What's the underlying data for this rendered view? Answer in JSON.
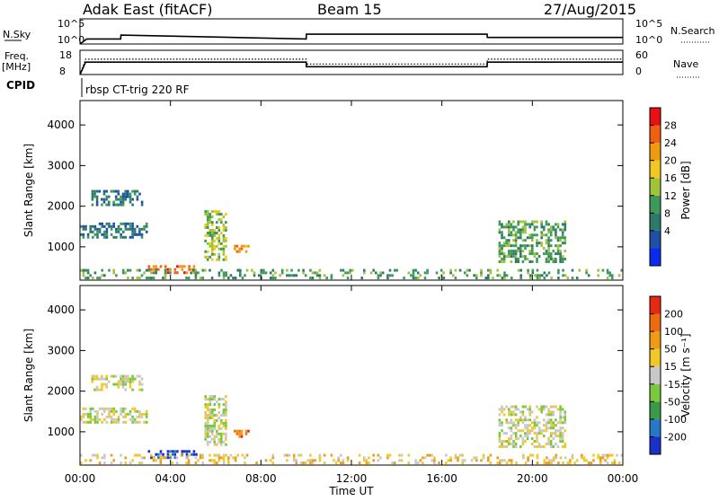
{
  "header": {
    "title": "Adak East (fitACF)",
    "beam": "Beam 15",
    "date": "27/Aug/2015"
  },
  "top_panels": {
    "nsky_label": "N.Sky",
    "nsearch_label": "N.Search",
    "freq_label": "Freq.",
    "freq_unit": "[MHz]",
    "nave_label": "Nave",
    "cpid_label": "CPID",
    "cpid_text": "rbsp CT-trig 220 RF",
    "nsky_ticks": [
      "10^5",
      "10^0"
    ],
    "nsearch_ticks": [
      "10^5",
      "10^0"
    ],
    "freq_ticks": [
      "18",
      "8"
    ],
    "nave_ticks": [
      "60",
      "0"
    ]
  },
  "colorbars": {
    "power": {
      "label": "Power [dB]",
      "ticks": [
        "28",
        "24",
        "20",
        "16",
        "12",
        "8",
        "4"
      ],
      "colors": [
        "#0a2af0",
        "#1f4fa6",
        "#2e7a6a",
        "#3c9a5a",
        "#a0c33a",
        "#f0c820",
        "#f09a10",
        "#f06010",
        "#e81010"
      ]
    },
    "velocity": {
      "label": "Velocity [m s⁻¹]",
      "ticks": [
        "200",
        "100",
        "50",
        "15",
        "-15",
        "-50",
        "-100",
        "-200"
      ],
      "colors": [
        "#1a30c8",
        "#2878c8",
        "#3c9a46",
        "#7ac83c",
        "#c8c8c8",
        "#f0c828",
        "#f09a18",
        "#f06a10",
        "#e82810"
      ]
    }
  },
  "chart_data": [
    {
      "type": "line",
      "title": "N.Sky / N.Search",
      "ylabel": "N.Sky",
      "y_scale": "log",
      "ylim": [
        1,
        100000
      ],
      "series": [
        {
          "name": "N.Sky",
          "x_hours": [
            0,
            0.3,
            1.8,
            1.81,
            10.0,
            10.01,
            18.0,
            18.01,
            24.0
          ],
          "values": [
            1,
            10,
            10,
            60,
            10,
            90,
            90,
            20,
            20
          ]
        }
      ]
    },
    {
      "type": "line",
      "title": "Freq / Nave",
      "ylabel": "Freq. [MHz]",
      "ylim": [
        8,
        18
      ],
      "series": [
        {
          "name": "Freq",
          "x_hours": [
            0,
            0.25,
            10.0,
            10.01,
            18.0,
            18.01,
            24.0
          ],
          "values": [
            8,
            13.1,
            13.1,
            11.2,
            11.2,
            13.1,
            13.1
          ]
        },
        {
          "name": "Nave",
          "x_hours": [
            0,
            0.25,
            10.0,
            10.01,
            18.0,
            18.01,
            24.0
          ],
          "values": [
            0,
            38,
            38,
            26,
            26,
            38,
            38
          ]
        }
      ]
    },
    {
      "type": "heatmap",
      "title": "Power",
      "xlabel": "Time UT",
      "ylabel": "Slant Range [km]",
      "x_ticks": [
        "00:00",
        "04:00",
        "08:00",
        "12:00",
        "16:00",
        "20:00",
        "00:00"
      ],
      "y_ticks": [
        "1000",
        "2000",
        "3000",
        "4000"
      ],
      "xlim": [
        0,
        24
      ],
      "ylim": [
        180,
        4600
      ],
      "regions": [
        {
          "t0": 0.0,
          "t1": 3.0,
          "r0": 1200,
          "r1": 1600,
          "level": 2
        },
        {
          "t0": 0.5,
          "t1": 2.8,
          "r0": 2000,
          "r1": 2400,
          "level": 2
        },
        {
          "t0": 3.0,
          "t1": 5.2,
          "r0": 330,
          "r1": 560,
          "level": 7
        },
        {
          "t0": 5.5,
          "t1": 6.5,
          "r0": 650,
          "r1": 1900,
          "level": 4
        },
        {
          "t0": 6.8,
          "t1": 7.5,
          "r0": 850,
          "r1": 1050,
          "level": 6
        },
        {
          "t0": 18.5,
          "t1": 21.5,
          "r0": 600,
          "r1": 1650,
          "level": 3
        },
        {
          "t0": 0.0,
          "t1": 24.0,
          "r0": 200,
          "r1": 450,
          "level": 3
        }
      ]
    },
    {
      "type": "heatmap",
      "title": "Velocity",
      "xlabel": "Time UT",
      "ylabel": "Slant Range [km]",
      "x_ticks": [
        "00:00",
        "04:00",
        "08:00",
        "12:00",
        "16:00",
        "20:00",
        "00:00"
      ],
      "y_ticks": [
        "1000",
        "2000",
        "3000",
        "4000"
      ],
      "xlim": [
        0,
        24
      ],
      "ylim": [
        180,
        4600
      ],
      "regions": [
        {
          "t0": 0.0,
          "t1": 3.0,
          "r0": 1200,
          "r1": 1600,
          "level": 4
        },
        {
          "t0": 0.5,
          "t1": 2.8,
          "r0": 2000,
          "r1": 2400,
          "level": 4
        },
        {
          "t0": 3.0,
          "t1": 5.2,
          "r0": 330,
          "r1": 560,
          "level": 0
        },
        {
          "t0": 5.5,
          "t1": 6.5,
          "r0": 650,
          "r1": 1900,
          "level": 4
        },
        {
          "t0": 6.8,
          "t1": 7.5,
          "r0": 850,
          "r1": 1050,
          "level": 7
        },
        {
          "t0": 18.5,
          "t1": 21.5,
          "r0": 600,
          "r1": 1650,
          "level": 4
        },
        {
          "t0": 0.0,
          "t1": 24.0,
          "r0": 200,
          "r1": 450,
          "level": 5
        }
      ]
    }
  ]
}
